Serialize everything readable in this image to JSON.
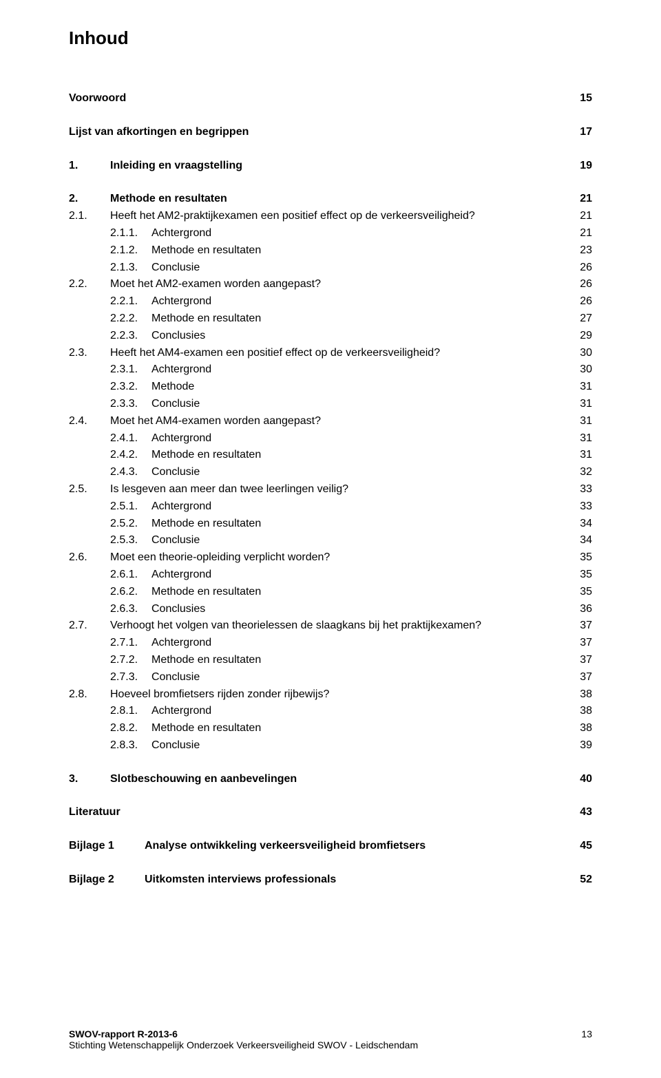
{
  "title": "Inhoud",
  "toc": [
    {
      "type": "row",
      "level": 0,
      "bold": true,
      "num": "",
      "label": "Voorwoord",
      "page": "15"
    },
    {
      "type": "gap"
    },
    {
      "type": "row",
      "level": 0,
      "bold": true,
      "num": "",
      "label": "Lijst van afkortingen en begrippen",
      "page": "17"
    },
    {
      "type": "gap"
    },
    {
      "type": "row",
      "level": 1,
      "bold": true,
      "num": "1.",
      "label": "Inleiding en vraagstelling",
      "page": "19"
    },
    {
      "type": "gap"
    },
    {
      "type": "row",
      "level": 1,
      "bold": true,
      "num": "2.",
      "label": "Methode en resultaten",
      "page": "21"
    },
    {
      "type": "row",
      "level": 1,
      "bold": false,
      "num": "2.1.",
      "label": "Heeft het AM2-praktijkexamen een positief effect op de verkeersveiligheid?",
      "page": "21"
    },
    {
      "type": "row",
      "level": 2,
      "bold": false,
      "num": "2.1.1.",
      "label": "Achtergrond",
      "page": "21"
    },
    {
      "type": "row",
      "level": 2,
      "bold": false,
      "num": "2.1.2.",
      "label": "Methode en resultaten",
      "page": "23"
    },
    {
      "type": "row",
      "level": 2,
      "bold": false,
      "num": "2.1.3.",
      "label": "Conclusie",
      "page": "26"
    },
    {
      "type": "row",
      "level": 1,
      "bold": false,
      "num": "2.2.",
      "label": "Moet het AM2-examen worden aangepast?",
      "page": "26"
    },
    {
      "type": "row",
      "level": 2,
      "bold": false,
      "num": "2.2.1.",
      "label": "Achtergrond",
      "page": "26"
    },
    {
      "type": "row",
      "level": 2,
      "bold": false,
      "num": "2.2.2.",
      "label": "Methode en resultaten",
      "page": "27"
    },
    {
      "type": "row",
      "level": 2,
      "bold": false,
      "num": "2.2.3.",
      "label": "Conclusies",
      "page": "29"
    },
    {
      "type": "row",
      "level": 1,
      "bold": false,
      "num": "2.3.",
      "label": "Heeft het AM4-examen een positief effect op de verkeersveiligheid?",
      "page": "30"
    },
    {
      "type": "row",
      "level": 2,
      "bold": false,
      "num": "2.3.1.",
      "label": "Achtergrond",
      "page": "30"
    },
    {
      "type": "row",
      "level": 2,
      "bold": false,
      "num": "2.3.2.",
      "label": "Methode",
      "page": "31"
    },
    {
      "type": "row",
      "level": 2,
      "bold": false,
      "num": "2.3.3.",
      "label": "Conclusie",
      "page": "31"
    },
    {
      "type": "row",
      "level": 1,
      "bold": false,
      "num": "2.4.",
      "label": "Moet het AM4-examen worden aangepast?",
      "page": "31"
    },
    {
      "type": "row",
      "level": 2,
      "bold": false,
      "num": "2.4.1.",
      "label": "Achtergrond",
      "page": "31"
    },
    {
      "type": "row",
      "level": 2,
      "bold": false,
      "num": "2.4.2.",
      "label": "Methode en resultaten",
      "page": "31"
    },
    {
      "type": "row",
      "level": 2,
      "bold": false,
      "num": "2.4.3.",
      "label": "Conclusie",
      "page": "32"
    },
    {
      "type": "row",
      "level": 1,
      "bold": false,
      "num": "2.5.",
      "label": "Is lesgeven aan meer dan twee leerlingen veilig?",
      "page": "33"
    },
    {
      "type": "row",
      "level": 2,
      "bold": false,
      "num": "2.5.1.",
      "label": "Achtergrond",
      "page": "33"
    },
    {
      "type": "row",
      "level": 2,
      "bold": false,
      "num": "2.5.2.",
      "label": "Methode en resultaten",
      "page": "34"
    },
    {
      "type": "row",
      "level": 2,
      "bold": false,
      "num": "2.5.3.",
      "label": "Conclusie",
      "page": "34"
    },
    {
      "type": "row",
      "level": 1,
      "bold": false,
      "num": "2.6.",
      "label": "Moet een theorie-opleiding verplicht worden?",
      "page": "35"
    },
    {
      "type": "row",
      "level": 2,
      "bold": false,
      "num": "2.6.1.",
      "label": "Achtergrond",
      "page": "35"
    },
    {
      "type": "row",
      "level": 2,
      "bold": false,
      "num": "2.6.2.",
      "label": "Methode en resultaten",
      "page": "35"
    },
    {
      "type": "row",
      "level": 2,
      "bold": false,
      "num": "2.6.3.",
      "label": "Conclusies",
      "page": "36"
    },
    {
      "type": "row",
      "level": 1,
      "bold": false,
      "num": "2.7.",
      "label": "Verhoogt het volgen van theorielessen de slaagkans bij het praktijkexamen?",
      "page": "37"
    },
    {
      "type": "row",
      "level": 2,
      "bold": false,
      "num": "2.7.1.",
      "label": "Achtergrond",
      "page": "37"
    },
    {
      "type": "row",
      "level": 2,
      "bold": false,
      "num": "2.7.2.",
      "label": "Methode en resultaten",
      "page": "37"
    },
    {
      "type": "row",
      "level": 2,
      "bold": false,
      "num": "2.7.3.",
      "label": "Conclusie",
      "page": "37"
    },
    {
      "type": "row",
      "level": 1,
      "bold": false,
      "num": "2.8.",
      "label": "Hoeveel bromfietsers rijden zonder rijbewijs?",
      "page": "38"
    },
    {
      "type": "row",
      "level": 2,
      "bold": false,
      "num": "2.8.1.",
      "label": "Achtergrond",
      "page": "38"
    },
    {
      "type": "row",
      "level": 2,
      "bold": false,
      "num": "2.8.2.",
      "label": "Methode en resultaten",
      "page": "38"
    },
    {
      "type": "row",
      "level": 2,
      "bold": false,
      "num": "2.8.3.",
      "label": "Conclusie",
      "page": "39"
    },
    {
      "type": "gap"
    },
    {
      "type": "row",
      "level": 1,
      "bold": true,
      "num": "3.",
      "label": "Slotbeschouwing en aanbevelingen",
      "page": "40"
    },
    {
      "type": "gap"
    },
    {
      "type": "row",
      "level": 0,
      "bold": true,
      "num": "",
      "label": "Literatuur",
      "page": "43"
    },
    {
      "type": "gap"
    },
    {
      "type": "appendix",
      "alabel": "Bijlage 1",
      "atext": "Analyse ontwikkeling verkeersveiligheid bromfietsers",
      "apage": "45"
    },
    {
      "type": "gap"
    },
    {
      "type": "appendix",
      "alabel": "Bijlage 2",
      "atext": "Uitkomsten interviews professionals",
      "apage": "52"
    }
  ],
  "footer": {
    "line1": "SWOV-rapport R-2013-6",
    "line2": "Stichting Wetenschappelijk Onderzoek Verkeersveiligheid SWOV - Leidschendam",
    "page": "13"
  },
  "colors": {
    "text": "#000000",
    "background": "#ffffff"
  },
  "typography": {
    "title_fontsize": 26,
    "body_fontsize": 16,
    "footer_fontsize": 14,
    "font_family": "Arial"
  }
}
